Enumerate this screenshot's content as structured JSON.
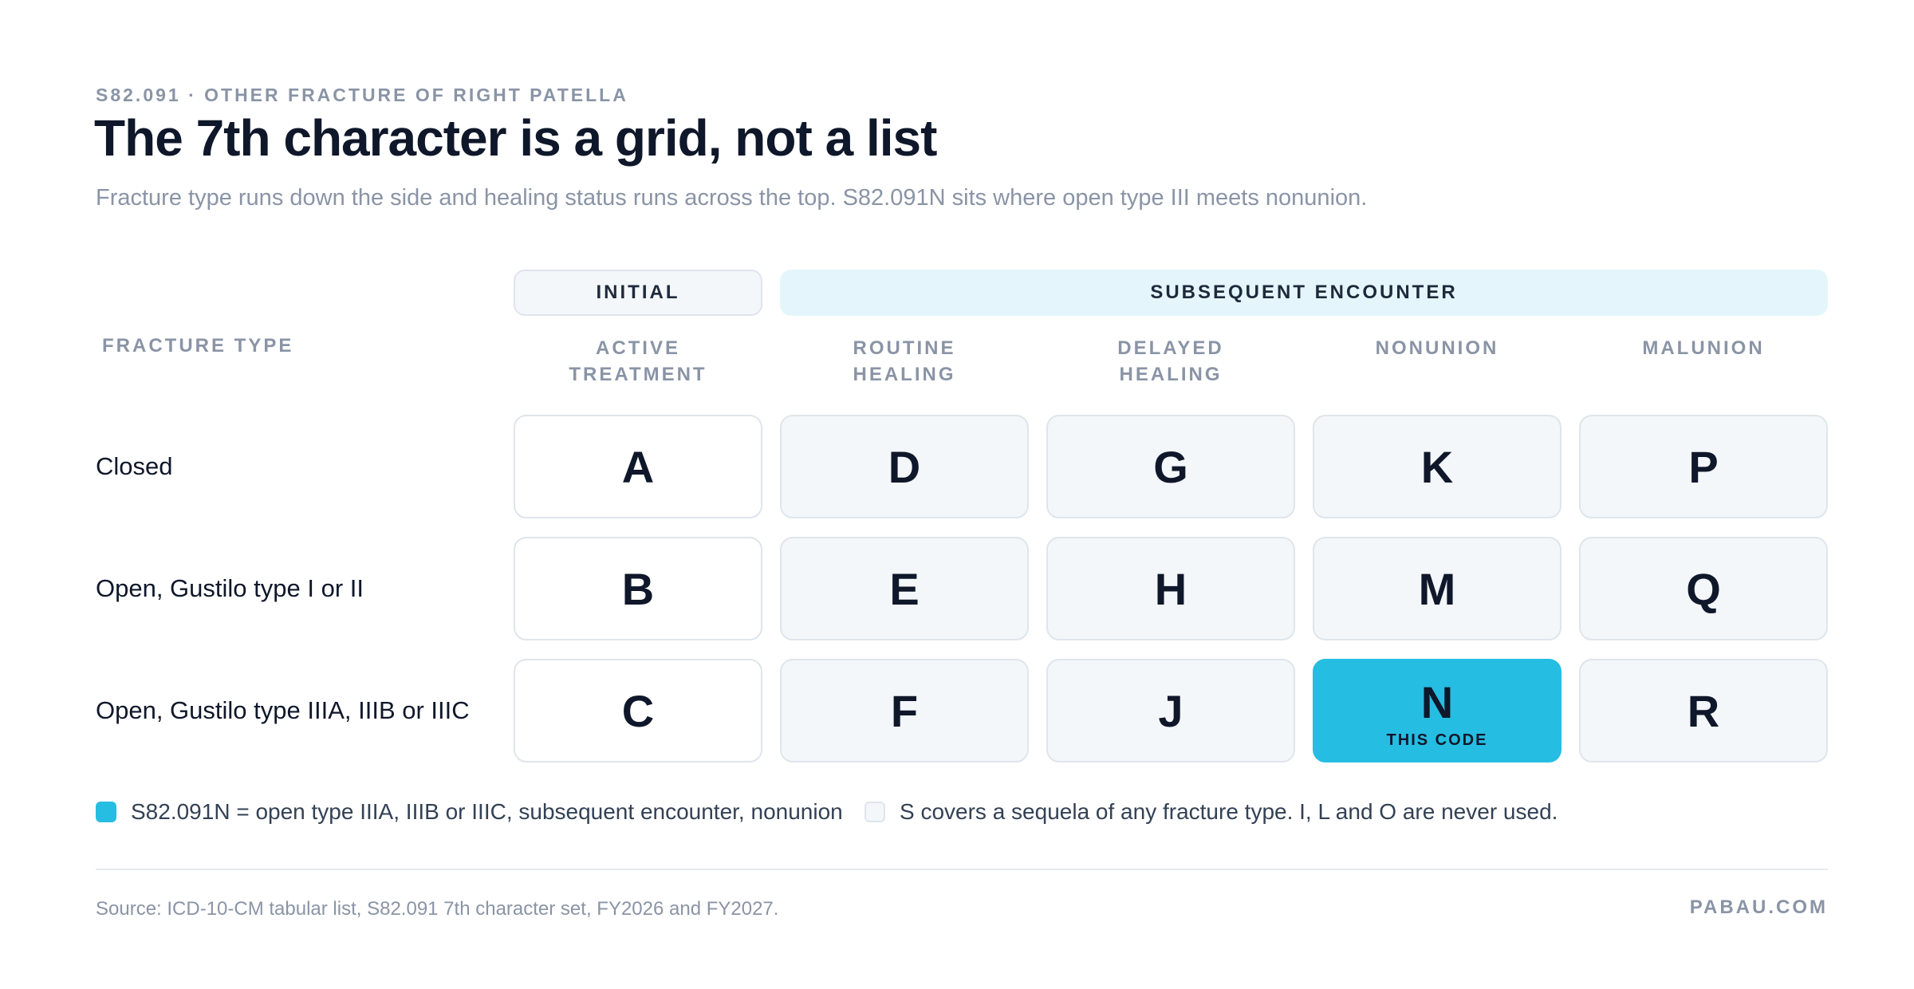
{
  "header": {
    "eyebrow": "S82.091 · OTHER FRACTURE OF RIGHT PATELLA",
    "title": "The 7th character is a grid, not a list",
    "subtitle": "Fracture type runs down the side and healing status runs across the top. S82.091N sits where open type III meets nonunion."
  },
  "groups": {
    "initial": "INITIAL",
    "subsequent": "SUBSEQUENT ENCOUNTER"
  },
  "fracture_type_header": "FRACTURE TYPE",
  "columns": [
    [
      "ACTIVE",
      "TREATMENT"
    ],
    [
      "ROUTINE",
      "HEALING"
    ],
    [
      "DELAYED",
      "HEALING"
    ],
    [
      "NONUNION"
    ],
    [
      "MALUNION"
    ]
  ],
  "rows": [
    {
      "label": "Closed",
      "cells": [
        "A",
        "D",
        "G",
        "K",
        "P"
      ]
    },
    {
      "label": "Open, Gustilo type I or II",
      "cells": [
        "B",
        "E",
        "H",
        "M",
        "Q"
      ]
    },
    {
      "label": "Open, Gustilo type IIIA, IIIB or IIIC",
      "cells": [
        "C",
        "F",
        "J",
        "N",
        "R"
      ]
    }
  ],
  "highlight": {
    "row": 2,
    "col": 3,
    "tag": "THIS CODE",
    "color": "#26bde2"
  },
  "legend": {
    "selected": "S82.091N = open type IIIA, IIIB or IIIC, subsequent encounter, nonunion",
    "other": "S covers a sequela of any fracture type. I, L and O are never used."
  },
  "footer": {
    "source": "Source: ICD-10-CM tabular list, S82.091 7th character set, FY2026 and FY2027.",
    "brand": "PABAU.COM"
  }
}
